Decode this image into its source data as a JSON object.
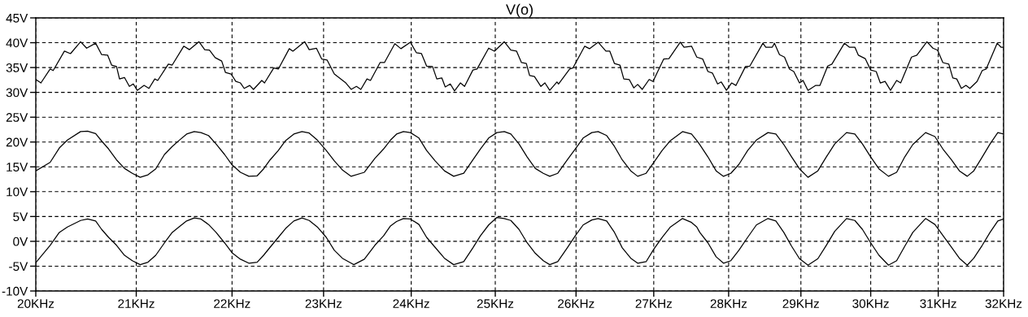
{
  "chart_data": {
    "type": "line",
    "title": "V(o)",
    "log": "x",
    "grid": true,
    "marker": "none",
    "line_style": "solid",
    "xlim": [
      20,
      32
    ],
    "ylim": [
      -10,
      45
    ],
    "xticks": [
      {
        "value": 20,
        "label": "20KHz"
      },
      {
        "value": 21,
        "label": "21KHz"
      },
      {
        "value": 22,
        "label": "22KHz"
      },
      {
        "value": 23,
        "label": "23KHz"
      },
      {
        "value": 24,
        "label": "24KHz"
      },
      {
        "value": 25,
        "label": "25KHz"
      },
      {
        "value": 26,
        "label": "26KHz"
      },
      {
        "value": 27,
        "label": "27KHz"
      },
      {
        "value": 28,
        "label": "28KHz"
      },
      {
        "value": 29,
        "label": "29KHz"
      },
      {
        "value": 30,
        "label": "30KHz"
      },
      {
        "value": 31,
        "label": "31KHz"
      },
      {
        "value": 32,
        "label": "32KHz"
      }
    ],
    "yticks": [
      {
        "value": 45,
        "label": "45V"
      },
      {
        "value": 40,
        "label": "40V"
      },
      {
        "value": 35,
        "label": "35V"
      },
      {
        "value": 30,
        "label": "30V"
      },
      {
        "value": 25,
        "label": "25V"
      },
      {
        "value": 20,
        "label": "20V"
      },
      {
        "value": 15,
        "label": "15V"
      },
      {
        "value": 10,
        "label": "10V"
      },
      {
        "value": 5,
        "label": "5V"
      },
      {
        "value": 0,
        "label": "0V"
      },
      {
        "value": -5,
        "label": "-5V"
      },
      {
        "value": -10,
        "label": "-10V"
      }
    ],
    "series": [
      {
        "color": "#000000",
        "x": [
          20.0,
          20.05,
          20.14,
          20.17,
          20.28,
          20.34,
          20.44,
          20.5,
          20.59,
          20.65,
          20.71,
          20.75,
          20.8,
          20.83,
          20.88,
          20.93,
          20.97,
          21.01,
          21.08,
          21.13,
          21.19,
          21.22,
          21.33,
          21.37,
          21.49,
          21.55,
          21.65,
          21.71,
          21.76,
          21.82,
          21.89,
          21.93,
          21.99,
          22.04,
          22.09,
          22.13,
          22.19,
          22.23,
          22.32,
          22.35,
          22.45,
          22.5,
          22.62,
          22.66,
          22.79,
          22.84,
          22.92,
          22.98,
          23.04,
          23.12,
          23.25,
          23.31,
          23.37,
          23.42,
          23.49,
          23.53,
          23.64,
          23.69,
          23.81,
          23.88,
          23.99,
          24.06,
          24.12,
          24.18,
          24.25,
          24.3,
          24.36,
          24.4,
          24.46,
          24.51,
          24.58,
          24.63,
          24.73,
          24.78,
          24.92,
          24.99,
          25.11,
          25.19,
          25.26,
          25.32,
          25.38,
          25.42,
          25.48,
          25.56,
          25.61,
          25.67,
          25.76,
          25.78,
          25.92,
          25.96,
          26.11,
          26.17,
          26.28,
          26.38,
          26.43,
          26.49,
          26.56,
          26.61,
          26.68,
          26.74,
          26.79,
          26.85,
          26.94,
          26.99,
          27.13,
          27.2,
          27.35,
          27.4,
          27.5,
          27.57,
          27.65,
          27.72,
          27.78,
          27.85,
          27.9,
          27.97,
          28.04,
          28.1,
          28.23,
          28.29,
          28.47,
          28.51,
          28.6,
          28.63,
          28.7,
          28.77,
          28.84,
          28.9,
          28.98,
          29.03,
          29.1,
          29.21,
          29.27,
          29.38,
          29.44,
          29.62,
          29.69,
          29.77,
          29.82,
          29.92,
          30.0,
          30.08,
          30.14,
          30.21,
          30.29,
          30.38,
          30.44,
          30.6,
          30.68,
          30.83,
          30.92,
          30.99,
          31.07,
          31.16,
          31.22,
          31.28,
          31.35,
          31.42,
          31.48,
          31.59,
          31.67,
          31.73,
          31.9,
          31.96,
          32.0
        ],
        "values": [
          32.6,
          31.9,
          34.7,
          34.4,
          38.3,
          37.8,
          40.2,
          38.9,
          39.9,
          37.6,
          37.5,
          35.5,
          35.2,
          32.7,
          33.0,
          31.2,
          31.7,
          30.4,
          31.4,
          30.8,
          32.7,
          32.4,
          35.7,
          35.5,
          39.3,
          38.6,
          40.2,
          38.6,
          38.5,
          37.0,
          36.3,
          34.0,
          33.7,
          32.2,
          31.9,
          30.8,
          31.4,
          30.6,
          32.4,
          31.9,
          34.9,
          34.7,
          38.8,
          38.3,
          40.2,
          38.6,
          38.9,
          36.7,
          36.5,
          33.7,
          31.9,
          30.6,
          31.2,
          30.6,
          32.7,
          32.4,
          36.0,
          36.0,
          39.8,
          38.8,
          40.1,
          38.0,
          37.8,
          35.3,
          35.2,
          32.7,
          32.9,
          31.1,
          31.7,
          30.3,
          31.9,
          31.2,
          34.5,
          34.7,
          38.9,
          38.3,
          40.2,
          38.5,
          38.3,
          36.0,
          35.8,
          33.4,
          33.2,
          31.2,
          31.9,
          30.4,
          32.1,
          31.7,
          34.7,
          34.9,
          39.3,
          38.8,
          40.1,
          38.3,
          38.3,
          35.8,
          35.5,
          32.7,
          32.6,
          30.9,
          31.6,
          30.6,
          32.6,
          32.2,
          36.7,
          36.8,
          40.1,
          39.1,
          39.3,
          37.1,
          36.7,
          34.2,
          33.9,
          31.7,
          32.1,
          30.4,
          31.9,
          31.4,
          35.2,
          35.3,
          39.9,
          39.1,
          39.1,
          39.9,
          37.6,
          37.1,
          34.7,
          34.2,
          31.9,
          32.4,
          30.4,
          31.4,
          31.4,
          35.3,
          35.7,
          39.9,
          39.1,
          39.1,
          37.5,
          36.8,
          34.5,
          34.2,
          31.9,
          32.2,
          30.4,
          32.4,
          31.9,
          37.1,
          37.5,
          40.2,
          38.9,
          38.5,
          36.0,
          35.7,
          32.9,
          32.7,
          30.8,
          31.4,
          30.8,
          32.2,
          34.4,
          34.7,
          39.9,
          39.1,
          39.1
        ]
      },
      {
        "color": "#000000",
        "x": [
          20.0,
          20.14,
          20.23,
          20.31,
          20.44,
          20.51,
          20.59,
          20.65,
          20.72,
          20.8,
          20.88,
          20.96,
          21.04,
          21.12,
          21.2,
          21.29,
          21.37,
          21.44,
          21.52,
          21.6,
          21.67,
          21.75,
          21.83,
          21.92,
          22.0,
          22.09,
          22.18,
          22.27,
          22.34,
          22.41,
          22.5,
          22.58,
          22.67,
          22.76,
          22.84,
          22.93,
          23.03,
          23.12,
          23.21,
          23.31,
          23.46,
          23.58,
          23.68,
          23.76,
          23.83,
          23.91,
          23.99,
          24.09,
          24.18,
          24.28,
          24.39,
          24.5,
          24.62,
          24.73,
          24.82,
          24.92,
          25.02,
          25.11,
          25.19,
          25.29,
          25.39,
          25.49,
          25.59,
          25.67,
          25.77,
          25.89,
          25.99,
          26.09,
          26.2,
          26.28,
          26.39,
          26.49,
          26.59,
          26.7,
          26.79,
          26.9,
          27.0,
          27.11,
          27.22,
          27.38,
          27.5,
          27.57,
          27.61,
          27.72,
          27.83,
          27.93,
          28.03,
          28.14,
          28.26,
          28.38,
          28.54,
          28.65,
          28.76,
          28.87,
          28.98,
          29.1,
          29.24,
          29.36,
          29.48,
          29.65,
          29.77,
          29.88,
          30.0,
          30.12,
          30.26,
          30.38,
          30.5,
          30.62,
          30.81,
          30.95,
          31.07,
          31.2,
          31.32,
          31.44,
          31.54,
          31.67,
          31.79,
          31.91,
          32.0
        ],
        "values": [
          14.2,
          15.9,
          18.8,
          20.4,
          22.1,
          22.2,
          21.7,
          20.2,
          18.6,
          16.4,
          14.7,
          13.7,
          12.9,
          13.4,
          14.6,
          17.5,
          19.1,
          20.3,
          21.6,
          22.1,
          21.9,
          21.3,
          19.6,
          17.5,
          15.4,
          13.9,
          13.1,
          13.2,
          14.6,
          16.4,
          18.3,
          20.3,
          21.6,
          22.1,
          21.8,
          20.4,
          18.3,
          16.2,
          14.4,
          13.1,
          13.9,
          16.7,
          18.6,
          20.4,
          21.6,
          22.1,
          21.9,
          20.8,
          18.3,
          16.2,
          14.2,
          13.1,
          13.7,
          16.4,
          18.6,
          20.8,
          21.9,
          22.1,
          21.6,
          19.6,
          17.0,
          14.7,
          13.7,
          13.1,
          13.7,
          16.4,
          18.6,
          20.8,
          21.9,
          22.1,
          21.3,
          19.1,
          16.4,
          14.2,
          13.1,
          13.7,
          15.9,
          18.3,
          20.3,
          22.1,
          21.6,
          20.3,
          19.5,
          17.0,
          14.2,
          13.1,
          13.7,
          15.5,
          18.3,
          20.4,
          21.9,
          21.6,
          19.5,
          17.0,
          14.6,
          12.9,
          14.2,
          17.0,
          19.6,
          21.9,
          21.6,
          19.6,
          17.0,
          14.6,
          13.1,
          13.9,
          17.0,
          19.5,
          21.9,
          21.1,
          18.6,
          16.4,
          14.2,
          13.1,
          14.2,
          17.0,
          19.6,
          21.9,
          21.6
        ]
      },
      {
        "color": "#000000",
        "x": [
          20.0,
          20.14,
          20.23,
          20.31,
          20.44,
          20.51,
          20.59,
          20.65,
          20.72,
          20.8,
          20.88,
          20.96,
          21.04,
          21.12,
          21.2,
          21.29,
          21.37,
          21.44,
          21.52,
          21.6,
          21.67,
          21.75,
          21.83,
          21.92,
          22.0,
          22.09,
          22.18,
          22.27,
          22.34,
          22.41,
          22.5,
          22.58,
          22.67,
          22.76,
          22.84,
          22.93,
          23.03,
          23.12,
          23.21,
          23.31,
          23.34,
          23.46,
          23.58,
          23.68,
          23.76,
          23.83,
          23.91,
          23.99,
          24.09,
          24.18,
          24.28,
          24.39,
          24.5,
          24.62,
          24.73,
          24.82,
          24.92,
          25.02,
          25.11,
          25.19,
          25.29,
          25.39,
          25.49,
          25.59,
          25.67,
          25.77,
          25.89,
          25.99,
          26.09,
          26.2,
          26.28,
          26.39,
          26.49,
          26.59,
          26.7,
          26.79,
          26.9,
          27.0,
          27.11,
          27.22,
          27.38,
          27.5,
          27.57,
          27.61,
          27.72,
          27.83,
          27.93,
          28.03,
          28.14,
          28.26,
          28.38,
          28.54,
          28.65,
          28.76,
          28.87,
          28.98,
          29.1,
          29.24,
          29.36,
          29.48,
          29.65,
          29.77,
          29.88,
          30.0,
          30.12,
          30.26,
          30.38,
          30.5,
          30.62,
          30.81,
          30.95,
          31.07,
          31.2,
          31.32,
          31.44,
          31.54,
          31.67,
          31.79,
          31.91,
          32.0
        ],
        "values": [
          -4.3,
          -0.8,
          1.8,
          2.9,
          4.2,
          4.5,
          4.1,
          2.4,
          0.8,
          -0.8,
          -2.8,
          -3.9,
          -4.7,
          -4.2,
          -2.8,
          -0.3,
          1.8,
          2.9,
          4.1,
          4.7,
          4.5,
          3.4,
          1.8,
          -0.3,
          -2.3,
          -3.6,
          -4.4,
          -4.2,
          -2.8,
          -1.2,
          0.8,
          2.6,
          4.1,
          4.7,
          4.2,
          2.9,
          0.8,
          -1.8,
          -3.4,
          -4.4,
          -4.7,
          -3.6,
          -0.8,
          1.1,
          3.1,
          4.0,
          4.6,
          4.5,
          3.4,
          0.8,
          -1.2,
          -3.4,
          -4.7,
          -4.1,
          -1.3,
          1.1,
          3.3,
          4.8,
          4.6,
          4.2,
          2.4,
          -0.3,
          -2.4,
          -3.9,
          -4.7,
          -4.1,
          -1.3,
          1.1,
          3.3,
          4.3,
          4.6,
          4.1,
          1.8,
          -1.3,
          -3.4,
          -4.4,
          -4.1,
          -1.6,
          0.8,
          2.9,
          4.6,
          3.8,
          2.9,
          1.8,
          -0.3,
          -3.1,
          -4.4,
          -3.9,
          -1.8,
          0.8,
          3.3,
          4.6,
          4.1,
          1.8,
          -1.0,
          -3.5,
          -4.8,
          -3.5,
          -0.8,
          2.0,
          4.6,
          4.2,
          2.4,
          -0.3,
          -2.8,
          -4.8,
          -3.9,
          -1.0,
          1.8,
          4.6,
          3.4,
          1.2,
          -1.2,
          -3.4,
          -4.8,
          -3.4,
          -0.8,
          1.8,
          4.1,
          4.5
        ]
      }
    ]
  }
}
